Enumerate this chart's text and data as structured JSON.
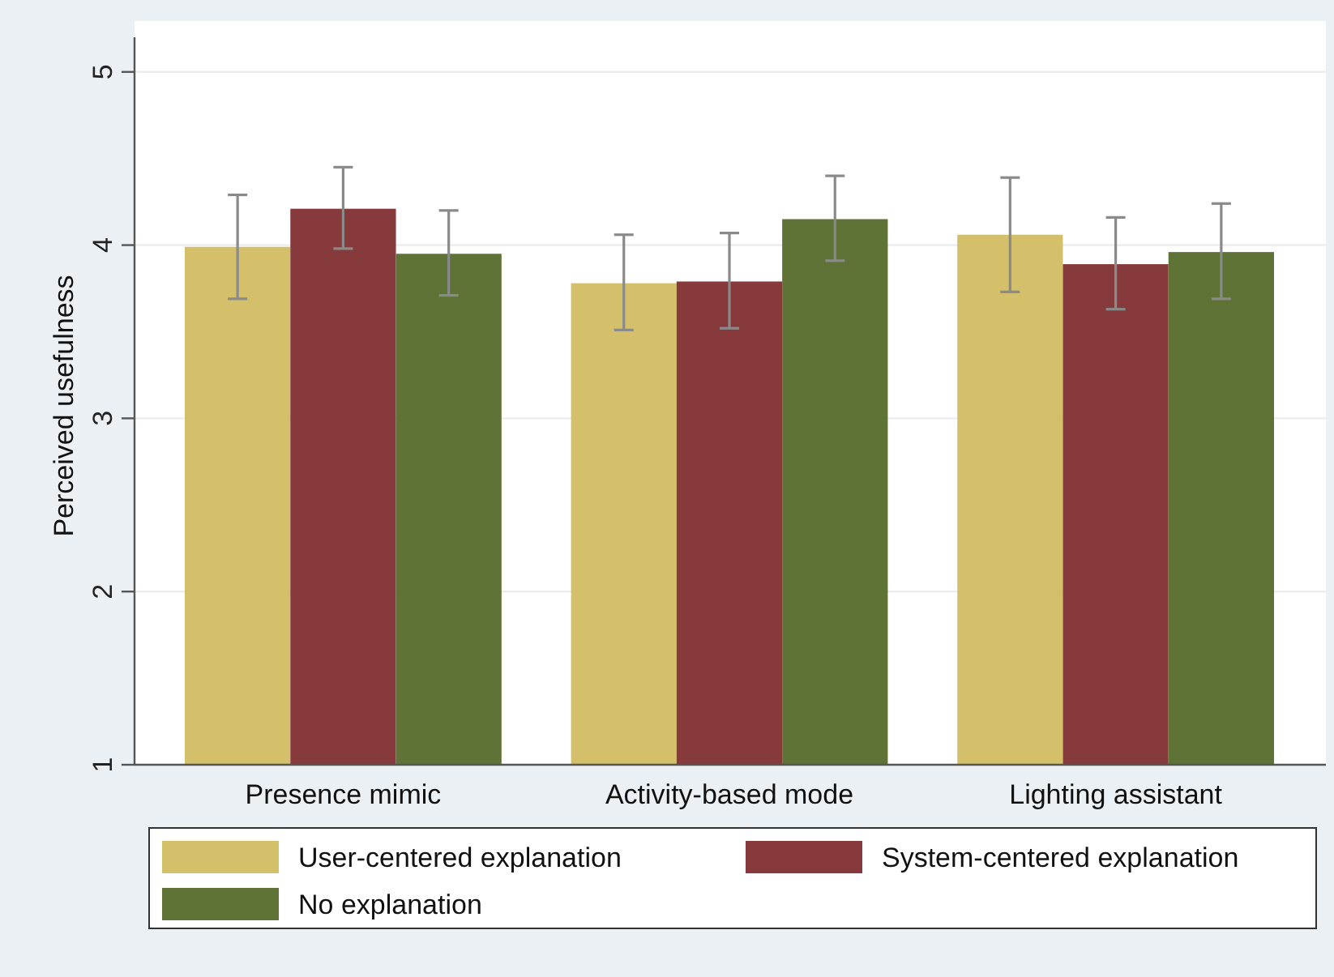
{
  "chart_data": {
    "type": "bar",
    "ylabel": "Perceived usefulness",
    "categories": [
      "Presence mimic",
      "Activity-based mode",
      "Lighting assistant"
    ],
    "series": [
      {
        "name": "User-centered explanation",
        "color": "#d4bf6a",
        "values": [
          3.99,
          3.78,
          4.06
        ],
        "errors": [
          [
            3.69,
            4.29
          ],
          [
            3.51,
            4.06
          ],
          [
            3.73,
            4.39
          ]
        ]
      },
      {
        "name": "System-centered explanation",
        "color": "#873a3c",
        "values": [
          4.21,
          3.79,
          3.89
        ],
        "errors": [
          [
            3.98,
            4.45
          ],
          [
            3.52,
            4.07
          ],
          [
            3.63,
            4.16
          ]
        ]
      },
      {
        "name": "No explanation",
        "color": "#5e7335",
        "values": [
          3.95,
          4.15,
          3.96
        ],
        "errors": [
          [
            3.71,
            4.2
          ],
          [
            3.91,
            4.4
          ],
          [
            3.69,
            4.24
          ]
        ]
      }
    ],
    "ylim": [
      1,
      5.2
    ],
    "yticks": [
      1,
      2,
      3,
      4,
      5
    ],
    "grid": "y",
    "legend": "bottom"
  }
}
